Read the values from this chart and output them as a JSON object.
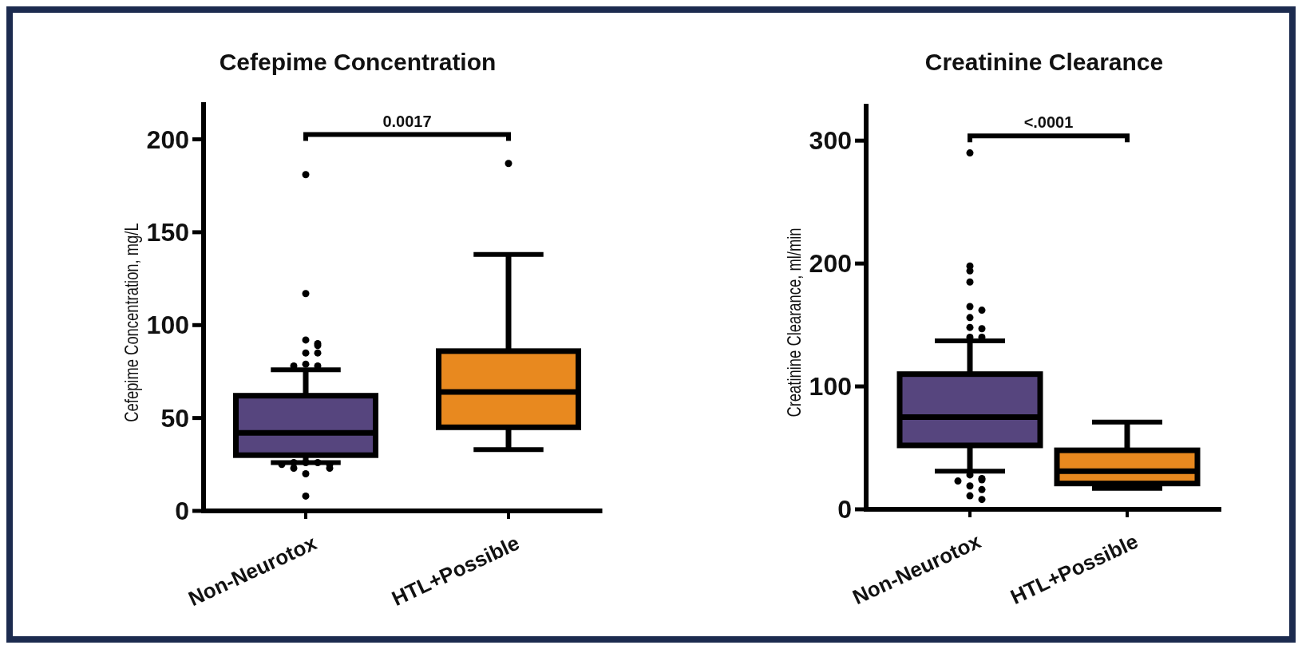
{
  "chart_data": [
    {
      "type": "box",
      "title": "Cefepime Concentration",
      "ylabel": "Cefepime Concentration, mg/L",
      "categories": [
        "Non-Neurotox",
        "HTL+Possible"
      ],
      "colors": [
        "#56457e",
        "#e8891f"
      ],
      "ylim": [
        0,
        220
      ],
      "yticks": [
        0,
        50,
        100,
        150,
        200
      ],
      "annotations": [
        "0.0017"
      ],
      "boxes": [
        {
          "low": 26,
          "q1": 30,
          "median": 42,
          "q3": 62,
          "high": 76,
          "outliers": [
            181,
            117,
            92,
            90,
            89,
            85,
            85,
            79,
            78,
            78,
            26,
            26,
            26,
            25,
            25,
            23,
            23,
            20,
            8
          ]
        },
        {
          "low": 33,
          "q1": 45,
          "median": 64,
          "q3": 86,
          "high": 138,
          "outliers": [
            187
          ]
        }
      ]
    },
    {
      "type": "box",
      "title": "Creatinine Clearance",
      "ylabel": "Creatinine Clearance, ml/min",
      "categories": [
        "Non-Neurotox",
        "HTL+Possible"
      ],
      "colors": [
        "#56457e",
        "#e8891f"
      ],
      "ylim": [
        0,
        330
      ],
      "yticks": [
        0,
        100,
        200,
        300
      ],
      "annotations": [
        "<.0001"
      ],
      "boxes": [
        {
          "low": 31,
          "q1": 52,
          "median": 75,
          "q3": 110,
          "high": 137,
          "outliers": [
            290,
            198,
            194,
            185,
            165,
            162,
            156,
            148,
            147,
            140,
            140,
            28,
            25,
            24,
            23,
            19,
            16,
            11,
            8
          ]
        },
        {
          "low": 17,
          "q1": 21,
          "median": 31,
          "q3": 48,
          "high": 71
        }
      ]
    }
  ]
}
